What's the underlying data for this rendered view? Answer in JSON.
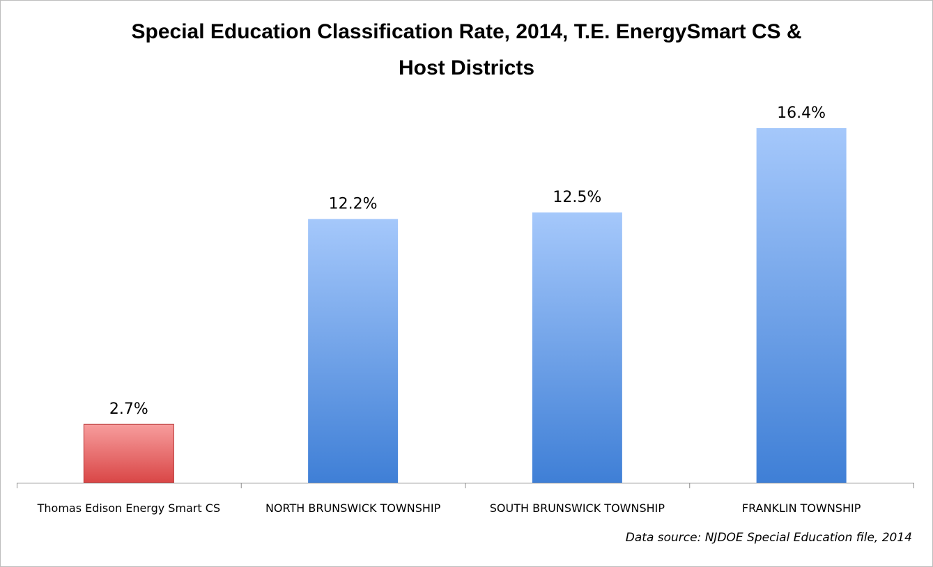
{
  "chart_data": {
    "type": "bar",
    "title_line1": "Special Education Classification Rate, 2014, T.E. EnergySmart CS &",
    "title_line2": "Host Districts",
    "categories": [
      "Thomas Edison Energy Smart CS",
      "NORTH BRUNSWICK TOWNSHIP",
      "SOUTH BRUNSWICK TOWNSHIP",
      "FRANKLIN TOWNSHIP"
    ],
    "values": [
      2.7,
      12.2,
      12.5,
      16.4
    ],
    "data_labels": [
      "2.7%",
      "12.2%",
      "12.5%",
      "16.4%"
    ],
    "bar_colors": [
      "red",
      "blue",
      "blue",
      "blue"
    ],
    "ylim": [
      0,
      16.4
    ],
    "grid": false,
    "legend": false
  },
  "source_note": "Data source: NJDOE Special Education file, 2014",
  "colors": {
    "red_top": "#f79d9d",
    "red_bottom": "#d94646",
    "red_stroke": "#b83232",
    "blue_top": "#a5c8fb",
    "blue_bottom": "#3f7fd6",
    "axis": "#8c8c8c"
  }
}
